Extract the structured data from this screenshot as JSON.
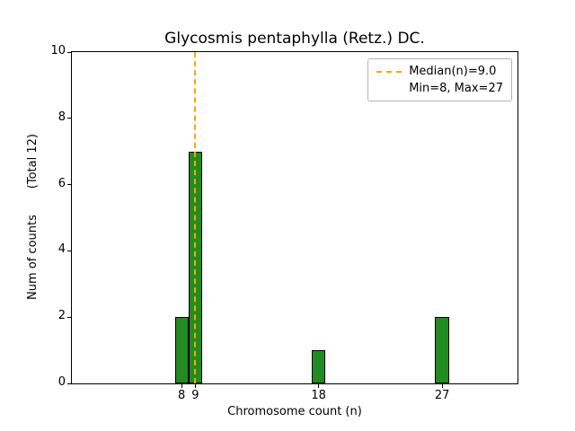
{
  "chart_data": {
    "type": "bar",
    "title": "Glycosmis pentaphylla (Retz.) DC.",
    "xlabel": "Chromosome count (n)",
    "ylabel": "Num of counts       (Total 12)",
    "total_label": "(Total 12)",
    "x": [
      8,
      9,
      18,
      27
    ],
    "values": [
      2,
      7,
      1,
      2
    ],
    "total_counts": 12,
    "bar_width": 1,
    "xticks": [
      8,
      9,
      18,
      27
    ],
    "yticks": [
      0,
      2,
      4,
      6,
      8,
      10
    ],
    "xlim": [
      0,
      32.5
    ],
    "ylim": [
      0,
      10
    ],
    "grid": false,
    "median": {
      "value": 9.0,
      "label": "Median(n)=9.0"
    },
    "min": 8,
    "max": 27,
    "colors": {
      "bar": "#228B22",
      "bar_edge": "#000000",
      "median_line": "#ffa500",
      "axes": "#000000",
      "background": "#ffffff"
    },
    "legend": {
      "position": "upper right",
      "entries": [
        "Median(n)=9.0",
        "Min=8, Max=27"
      ]
    }
  }
}
